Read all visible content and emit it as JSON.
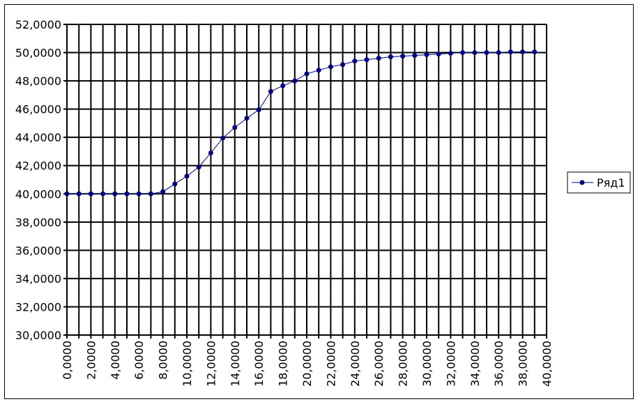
{
  "chart_data": {
    "type": "line",
    "title": "",
    "xlabel": "",
    "ylabel": "",
    "xlim": [
      0,
      40
    ],
    "ylim": [
      30,
      52
    ],
    "x_ticks": [
      "0,0000",
      "2,0000",
      "4,0000",
      "6,0000",
      "8,0000",
      "10,0000",
      "12,0000",
      "14,0000",
      "16,0000",
      "18,0000",
      "20,0000",
      "22,0000",
      "24,0000",
      "26,0000",
      "28,0000",
      "30,0000",
      "32,0000",
      "34,0000",
      "36,0000",
      "38,0000",
      "40,0000"
    ],
    "y_ticks": [
      "30,0000",
      "32,0000",
      "34,0000",
      "36,0000",
      "38,0000",
      "40,0000",
      "42,0000",
      "44,0000",
      "46,0000",
      "48,0000",
      "50,0000",
      "52,0000"
    ],
    "grid": true,
    "legend_position": "right",
    "series": [
      {
        "name": "Ряд1",
        "color": "#000080",
        "x": [
          0,
          1,
          2,
          3,
          4,
          5,
          6,
          7,
          8,
          9,
          10,
          11,
          12,
          13,
          14,
          15,
          16,
          17,
          18,
          19,
          20,
          21,
          22,
          23,
          24,
          25,
          26,
          27,
          28,
          29,
          30,
          31,
          32,
          33,
          34,
          35,
          36,
          37,
          38,
          39
        ],
        "y": [
          40.0,
          40.0,
          40.0,
          40.0,
          40.0,
          40.0,
          40.0,
          40.0,
          40.15,
          40.7,
          41.25,
          41.9,
          42.9,
          43.95,
          44.7,
          45.35,
          45.95,
          47.25,
          47.65,
          48.0,
          48.5,
          48.75,
          49.0,
          49.15,
          49.4,
          49.5,
          49.6,
          49.7,
          49.75,
          49.8,
          49.85,
          49.9,
          49.95,
          50.0,
          50.0,
          50.0,
          50.0,
          50.05,
          50.05,
          50.05
        ]
      }
    ]
  }
}
